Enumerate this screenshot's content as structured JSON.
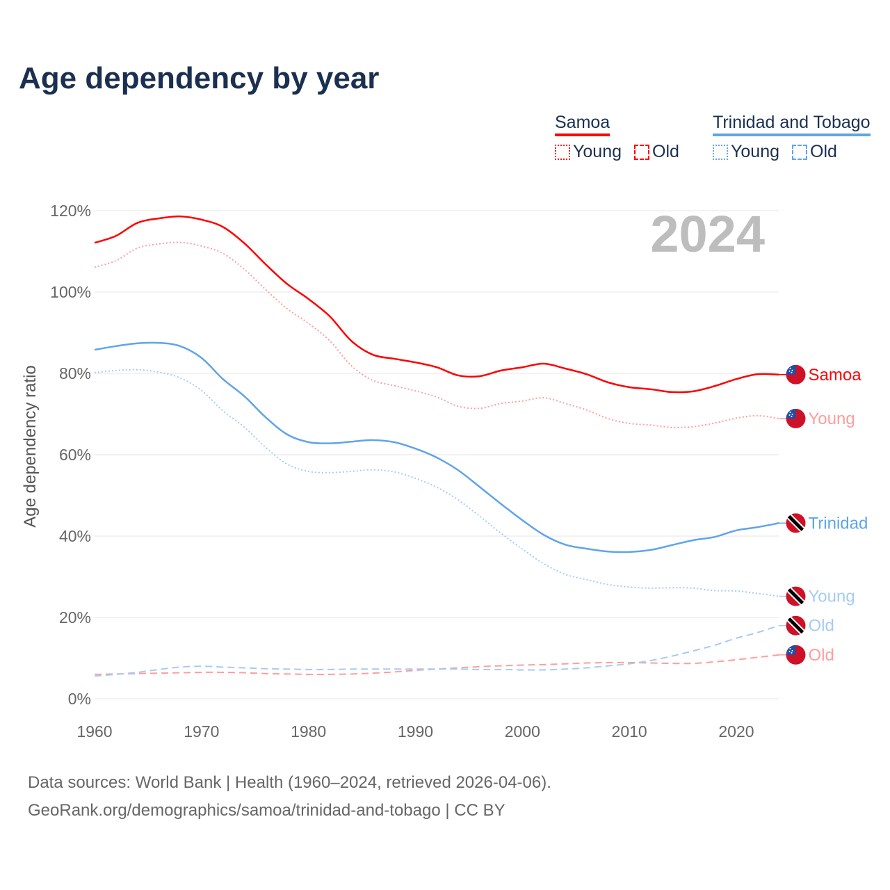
{
  "title": "Age dependency by year",
  "legend": {
    "groups": [
      {
        "name": "Samoa",
        "color": "#ff0000",
        "items": [
          {
            "label": "Young",
            "style": "dotted"
          },
          {
            "label": "Old",
            "style": "dashed"
          }
        ]
      },
      {
        "name": "Trinidad and Tobago",
        "color": "#5fa4ea",
        "items": [
          {
            "label": "Young",
            "style": "dotted"
          },
          {
            "label": "Old",
            "style": "dashed"
          }
        ]
      }
    ]
  },
  "year_watermark": "2024",
  "footer": {
    "line1": "Data sources: World Bank | Health (1960–2024, retrieved 2026-04-06).",
    "line2": "GeoRank.org/demographics/samoa/trinidad-and-tobago | CC BY"
  },
  "chart_data": {
    "type": "line",
    "title": "Age dependency by year",
    "xlabel": "",
    "ylabel": "Age dependency ratio",
    "xlim": [
      1960,
      2024
    ],
    "ylim": [
      0,
      120
    ],
    "x_ticks": [
      "1960",
      "1970",
      "1980",
      "1990",
      "2000",
      "2010",
      "2020"
    ],
    "y_ticks": [
      "0%",
      "20%",
      "40%",
      "60%",
      "80%",
      "100%",
      "120%"
    ],
    "grid": true,
    "x": [
      1960,
      1962,
      1964,
      1966,
      1968,
      1970,
      1972,
      1974,
      1976,
      1978,
      1980,
      1982,
      1984,
      1986,
      1988,
      1990,
      1992,
      1994,
      1996,
      1998,
      2000,
      2002,
      2004,
      2006,
      2008,
      2010,
      2012,
      2014,
      2016,
      2018,
      2020,
      2022,
      2024
    ],
    "series": [
      {
        "name": "Samoa",
        "end_label": "Samoa",
        "flag": "samoa",
        "color": "#ff0000",
        "dash": "solid",
        "values": [
          112.1,
          113.8,
          117.0,
          118.1,
          118.6,
          117.8,
          116.0,
          112.0,
          106.8,
          102.0,
          98.3,
          94.0,
          88.0,
          84.6,
          83.6,
          82.7,
          81.5,
          79.5,
          79.3,
          80.7,
          81.5,
          82.4,
          81.2,
          79.8,
          77.8,
          76.6,
          76.1,
          75.4,
          75.6,
          76.9,
          78.6,
          79.8,
          79.7
        ]
      },
      {
        "name": "Samoa Young",
        "end_label": "Young",
        "flag": "samoa",
        "color": "#ff9d9d",
        "dash": "dotted",
        "values": [
          106.1,
          107.7,
          110.8,
          111.8,
          112.2,
          111.3,
          109.5,
          105.6,
          100.6,
          95.9,
          92.3,
          88.0,
          81.9,
          78.3,
          77.0,
          75.7,
          74.2,
          71.9,
          71.4,
          72.6,
          73.2,
          74.0,
          72.6,
          71.0,
          68.9,
          67.7,
          67.3,
          66.7,
          66.9,
          67.8,
          69.0,
          69.6,
          68.9
        ]
      },
      {
        "name": "Samoa Old",
        "end_label": "Old",
        "flag": "samoa",
        "color": "#ff9d9d",
        "dash": "dashed",
        "values": [
          6.0,
          6.1,
          6.2,
          6.3,
          6.4,
          6.5,
          6.5,
          6.4,
          6.2,
          6.1,
          6.0,
          6.0,
          6.1,
          6.3,
          6.6,
          7.0,
          7.3,
          7.6,
          7.9,
          8.1,
          8.3,
          8.4,
          8.6,
          8.8,
          8.9,
          8.9,
          8.8,
          8.7,
          8.7,
          9.1,
          9.6,
          10.2,
          10.8
        ]
      },
      {
        "name": "Trinidad and Tobago",
        "end_label": "Trinidad",
        "flag": "trinidad",
        "color": "#5fa4ea",
        "dash": "solid",
        "values": [
          85.8,
          86.7,
          87.4,
          87.5,
          86.7,
          83.8,
          78.6,
          74.4,
          69.2,
          65.0,
          63.1,
          62.8,
          63.2,
          63.6,
          63.1,
          61.5,
          59.3,
          56.2,
          52.1,
          47.9,
          43.9,
          40.3,
          37.9,
          36.9,
          36.2,
          36.1,
          36.6,
          37.8,
          39.0,
          39.8,
          41.4,
          42.2,
          43.2
        ]
      },
      {
        "name": "Trinidad and Tobago Young",
        "end_label": "Young",
        "flag": "trinidad",
        "color": "#a6cbf2",
        "dash": "dotted",
        "values": [
          80.2,
          80.7,
          80.9,
          80.3,
          78.9,
          75.8,
          70.8,
          66.8,
          61.8,
          57.7,
          55.9,
          55.6,
          55.9,
          56.3,
          55.8,
          54.2,
          52.0,
          48.9,
          44.9,
          40.7,
          36.8,
          33.2,
          30.6,
          29.3,
          28.1,
          27.5,
          27.2,
          27.3,
          27.2,
          26.6,
          26.5,
          25.9,
          25.2
        ]
      },
      {
        "name": "Trinidad and Tobago Old",
        "end_label": "Old",
        "flag": "trinidad",
        "color": "#a6cbf2",
        "dash": "dashed",
        "values": [
          5.6,
          6.0,
          6.5,
          7.2,
          7.8,
          8.0,
          7.8,
          7.6,
          7.4,
          7.3,
          7.2,
          7.2,
          7.3,
          7.3,
          7.3,
          7.3,
          7.3,
          7.3,
          7.2,
          7.2,
          7.1,
          7.1,
          7.3,
          7.6,
          8.1,
          8.6,
          9.4,
          10.5,
          11.8,
          13.2,
          14.9,
          16.3,
          18.0
        ]
      }
    ]
  }
}
